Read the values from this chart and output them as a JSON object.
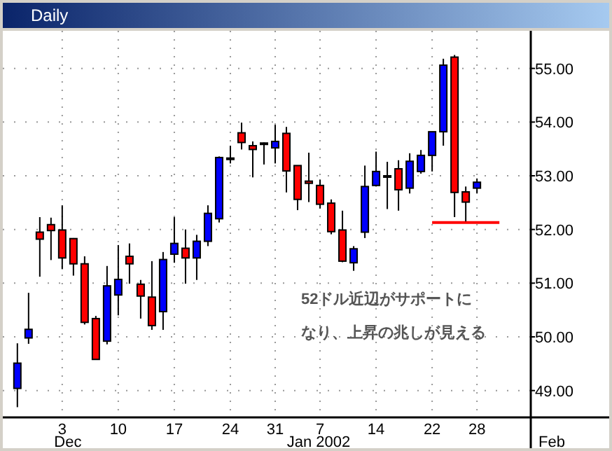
{
  "chart_data": {
    "type": "candlestick",
    "title": "Daily",
    "categories": [
      null,
      null,
      null,
      null,
      "3",
      null,
      null,
      null,
      null,
      "10",
      null,
      null,
      null,
      null,
      "17",
      null,
      null,
      null,
      null,
      "24",
      null,
      null,
      null,
      "31",
      null,
      null,
      null,
      "7",
      null,
      null,
      null,
      null,
      "14",
      null,
      null,
      null,
      null,
      "22",
      null,
      null,
      null,
      "28",
      null,
      null,
      null,
      null
    ],
    "ohlc": [
      [
        49.04,
        49.88,
        48.69,
        49.51
      ],
      [
        49.98,
        50.82,
        49.87,
        50.14
      ],
      [
        51.95,
        52.23,
        51.12,
        51.82
      ],
      [
        52.09,
        52.22,
        51.43,
        51.98
      ],
      [
        51.99,
        52.45,
        51.26,
        51.47
      ],
      [
        51.83,
        51.84,
        51.14,
        51.36
      ],
      [
        51.36,
        51.5,
        50.23,
        50.27
      ],
      [
        50.34,
        50.39,
        49.58,
        49.58
      ],
      [
        49.92,
        51.32,
        49.86,
        50.95
      ],
      [
        50.78,
        51.71,
        50.4,
        51.07
      ],
      [
        51.5,
        51.74,
        50.99,
        51.36
      ],
      [
        50.98,
        51.06,
        50.34,
        50.76
      ],
      [
        50.74,
        51.41,
        50.13,
        50.21
      ],
      [
        50.47,
        51.58,
        50.13,
        51.44
      ],
      [
        51.54,
        52.23,
        51.38,
        51.74
      ],
      [
        51.65,
        52.0,
        50.99,
        51.47
      ],
      [
        51.47,
        51.9,
        51.06,
        51.78
      ],
      [
        51.78,
        52.45,
        51.69,
        52.3
      ],
      [
        52.2,
        53.36,
        52.13,
        53.34
      ],
      [
        53.33,
        53.56,
        53.23,
        53.31
      ],
      [
        53.8,
        53.99,
        53.49,
        53.62
      ],
      [
        53.56,
        53.64,
        52.97,
        53.49
      ],
      [
        53.61,
        53.62,
        53.21,
        53.6
      ],
      [
        53.52,
        53.95,
        53.23,
        53.64
      ],
      [
        53.79,
        53.91,
        52.69,
        53.09
      ],
      [
        53.19,
        53.19,
        52.36,
        52.56
      ],
      [
        52.9,
        53.43,
        52.51,
        52.86
      ],
      [
        52.82,
        52.93,
        52.39,
        52.47
      ],
      [
        52.49,
        52.56,
        51.91,
        51.96
      ],
      [
        51.99,
        52.35,
        51.39,
        51.41
      ],
      [
        51.38,
        51.69,
        51.23,
        51.64
      ],
      [
        51.95,
        53.19,
        51.84,
        52.8
      ],
      [
        52.82,
        53.45,
        52.8,
        53.08
      ],
      [
        53.0,
        53.26,
        52.38,
        52.99
      ],
      [
        53.13,
        53.29,
        52.35,
        52.74
      ],
      [
        52.77,
        53.42,
        52.67,
        53.27
      ],
      [
        53.08,
        53.48,
        53.04,
        53.38
      ],
      [
        53.38,
        53.82,
        53.08,
        53.82
      ],
      [
        53.82,
        55.18,
        53.56,
        55.06
      ],
      [
        55.21,
        55.25,
        52.23,
        52.69
      ],
      [
        52.7,
        52.8,
        52.15,
        52.51
      ],
      [
        52.77,
        52.95,
        52.67,
        52.88
      ],
      null,
      null,
      null,
      null
    ],
    "colors": [
      "#0000ff",
      "#0000ff",
      "#ff0000",
      "#ff0000",
      "#ff0000",
      "#ff0000",
      "#ff0000",
      "#ff0000",
      "#0000ff",
      "#0000ff",
      "#ff0000",
      "#ff0000",
      "#ff0000",
      "#0000ff",
      "#0000ff",
      "#ff0000",
      "#0000ff",
      "#0000ff",
      "#0000ff",
      "#ff0000",
      "#ff0000",
      "#ff0000",
      "#ff0000",
      "#0000ff",
      "#ff0000",
      "#ff0000",
      "#ff0000",
      "#ff0000",
      "#ff0000",
      "#ff0000",
      "#0000ff",
      "#0000ff",
      "#0000ff",
      "#ff0000",
      "#ff0000",
      "#0000ff",
      "#0000ff",
      "#0000ff",
      "#0000ff",
      "#ff0000",
      "#ff0000",
      "#0000ff",
      null,
      null,
      null,
      null
    ],
    "series": [
      {
        "type": "line",
        "color": "#ff0000",
        "values": [
          null,
          null,
          null,
          null,
          null,
          null,
          null,
          null,
          null,
          null,
          null,
          null,
          null,
          null,
          null,
          null,
          null,
          null,
          null,
          null,
          null,
          null,
          null,
          null,
          null,
          null,
          null,
          null,
          null,
          null,
          null,
          null,
          null,
          null,
          null,
          null,
          null,
          52.13,
          52.13,
          52.13,
          52.13,
          52.13,
          52.13,
          52.13,
          null,
          null
        ]
      }
    ],
    "ylim": [
      48.5,
      55.7
    ],
    "yticks": [
      {
        "value": 49,
        "label": "49.00"
      },
      {
        "value": 50,
        "label": "50.00"
      },
      {
        "value": 51,
        "label": "51.00"
      },
      {
        "value": 52,
        "label": "52.00"
      },
      {
        "value": 53,
        "label": "53.00"
      },
      {
        "value": 54,
        "label": "54.00"
      },
      {
        "value": 55,
        "label": "55.00"
      }
    ],
    "grid": true,
    "annotations": [
      "Dec",
      "Jan 2002",
      "Feb",
      "52ドル近辺がサポートに",
      "なり、上昇の兆しが見える"
    ]
  }
}
